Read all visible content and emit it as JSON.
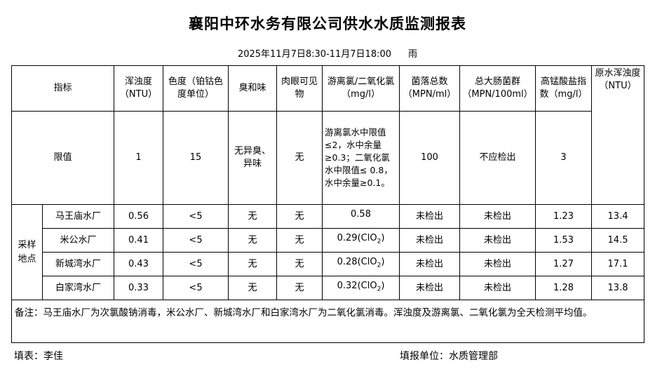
{
  "title": "襄阳中环水务有限公司供水水质监测报表",
  "period": "2025年11月7日8:30-11月7日18:00",
  "weather": "雨",
  "headers": {
    "indicator": "指标",
    "turbidity": "浑浊度（NTU）",
    "color": "色度（铂钴色度单位）",
    "odor": "臭和味",
    "visible": "肉眼可见物",
    "chlorine": "游离氯/二氧化氯（mg/l）",
    "colony": "菌落总数（MPN/ml）",
    "coliform": "总大肠菌群（MPN/100ml）",
    "permanganate": "高锰酸盐指数（mg/l）",
    "raw_turbidity": "原水浑浊度（NTU）"
  },
  "limits": {
    "label": "限值",
    "turbidity": "1",
    "color": "15",
    "odor": "无异臭、异味",
    "visible": "无",
    "chlorine": "游离氯水中限值 ≤2，水中余量≥0.3；二氧化氯水中限值≤ 0.8，水中余量≥0.1。",
    "colony": "100",
    "coliform": "不应检出",
    "permanganate": "3"
  },
  "sampling_label": "采样地点",
  "rows": [
    {
      "site": "马王庙水厂",
      "turbidity": "0.56",
      "color": "<5",
      "odor": "无",
      "visible": "无",
      "chlorine": "0.58",
      "chlorine_sub": "",
      "colony": "未检出",
      "coliform": "未检出",
      "permanganate": "1.23",
      "raw_turbidity": "13.4"
    },
    {
      "site": "米公水厂",
      "turbidity": "0.41",
      "color": "<5",
      "odor": "无",
      "visible": "无",
      "chlorine": "0.29(ClO",
      "chlorine_sub": "2",
      "chlorine_end": ")",
      "colony": "未检出",
      "coliform": "未检出",
      "permanganate": "1.53",
      "raw_turbidity": "14.5"
    },
    {
      "site": "新城湾水厂",
      "turbidity": "0.43",
      "color": "<5",
      "odor": "无",
      "visible": "无",
      "chlorine": "0.28(ClO",
      "chlorine_sub": "2",
      "chlorine_end": ")",
      "colony": "未检出",
      "coliform": "未检出",
      "permanganate": "1.27",
      "raw_turbidity": "17.1"
    },
    {
      "site": "白家湾水厂",
      "turbidity": "0.33",
      "color": "<5",
      "odor": "无",
      "visible": "无",
      "chlorine": "0.32(ClO",
      "chlorine_sub": "2",
      "chlorine_end": ")",
      "colony": "未检出",
      "coliform": "未检出",
      "permanganate": "1.28",
      "raw_turbidity": "13.8"
    }
  ],
  "note": "备注：马王庙水厂为次氯酸钠消毒，米公水厂、新城湾水厂和白家湾水厂为二氧化氯消毒。浑浊度及游离氯、二氧化氯为全天检测平均值。",
  "footer": {
    "filler": "填表：李佳",
    "unit": "填报单位：水质管理部"
  }
}
